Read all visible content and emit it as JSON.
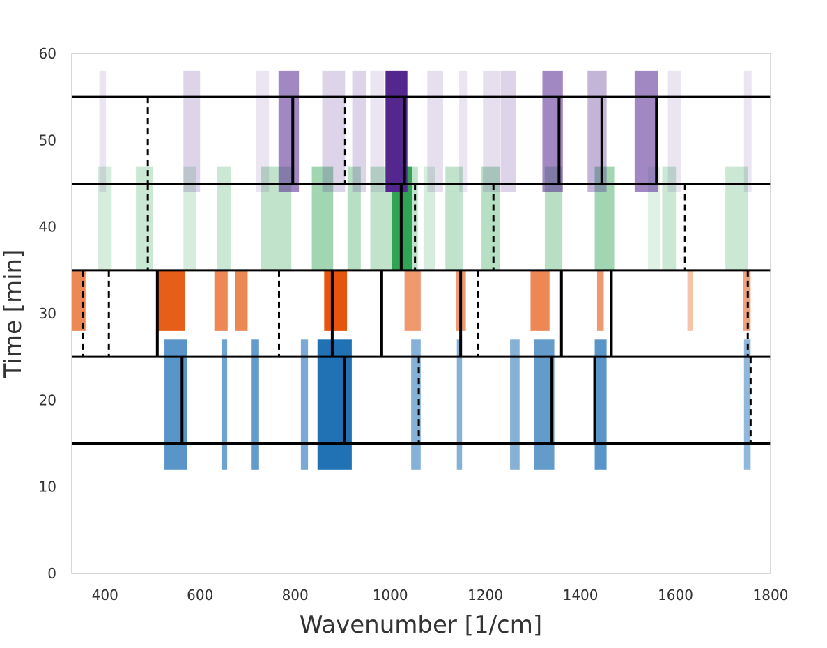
{
  "chart_data": {
    "type": "bar",
    "title": "",
    "xlabel": "Wavenumber [1/cm]",
    "ylabel": "Time [min]",
    "xlim": [
      330,
      1800
    ],
    "ylim": [
      0,
      60
    ],
    "grid": false,
    "x_ticks": [
      400,
      600,
      800,
      1000,
      1200,
      1400,
      1600,
      1800
    ],
    "y_ticks": [
      0,
      10,
      20,
      30,
      40,
      50,
      60
    ],
    "time_markers": [
      15,
      25,
      35,
      45,
      55
    ],
    "series": [
      {
        "name": "blue",
        "color": "#2171b5",
        "y_range": [
          12,
          27
        ],
        "bands": [
          {
            "x0": 525,
            "x1": 572,
            "intensity": 0.75
          },
          {
            "x0": 645,
            "x1": 657,
            "intensity": 0.65
          },
          {
            "x0": 707,
            "x1": 724,
            "intensity": 0.7
          },
          {
            "x0": 812,
            "x1": 827,
            "intensity": 0.6
          },
          {
            "x0": 847,
            "x1": 919,
            "intensity": 1.0
          },
          {
            "x0": 1044,
            "x1": 1064,
            "intensity": 0.55
          },
          {
            "x0": 1140,
            "x1": 1151,
            "intensity": 0.55
          },
          {
            "x0": 1252,
            "x1": 1272,
            "intensity": 0.55
          },
          {
            "x0": 1302,
            "x1": 1345,
            "intensity": 0.7
          },
          {
            "x0": 1430,
            "x1": 1455,
            "intensity": 0.75
          },
          {
            "x0": 1744,
            "x1": 1758,
            "intensity": 0.5
          }
        ],
        "markers": [
          {
            "x": 562,
            "style": "solid"
          },
          {
            "x": 903,
            "style": "solid"
          },
          {
            "x": 1060,
            "style": "dashed"
          },
          {
            "x": 1340,
            "style": "solid"
          },
          {
            "x": 1430,
            "style": "solid"
          },
          {
            "x": 1758,
            "style": "dashed"
          }
        ]
      },
      {
        "name": "orange",
        "color": "#e6550d",
        "y_range": [
          28,
          35
        ],
        "bands": [
          {
            "x0": 330,
            "x1": 359,
            "intensity": 0.7
          },
          {
            "x0": 512,
            "x1": 568,
            "intensity": 0.95
          },
          {
            "x0": 630,
            "x1": 658,
            "intensity": 0.7
          },
          {
            "x0": 673,
            "x1": 700,
            "intensity": 0.7
          },
          {
            "x0": 861,
            "x1": 909,
            "intensity": 1.0
          },
          {
            "x0": 1030,
            "x1": 1064,
            "intensity": 0.6
          },
          {
            "x0": 1139,
            "x1": 1159,
            "intensity": 0.6
          },
          {
            "x0": 1295,
            "x1": 1335,
            "intensity": 0.7
          },
          {
            "x0": 1435,
            "x1": 1449,
            "intensity": 0.6
          },
          {
            "x0": 1625,
            "x1": 1637,
            "intensity": 0.35
          },
          {
            "x0": 1742,
            "x1": 1758,
            "intensity": 0.55
          }
        ],
        "markers": [
          {
            "x": 353,
            "style": "dashed"
          },
          {
            "x": 408,
            "style": "dashed"
          },
          {
            "x": 510,
            "style": "solid"
          },
          {
            "x": 766,
            "style": "dashed"
          },
          {
            "x": 878,
            "style": "solid"
          },
          {
            "x": 982,
            "style": "solid"
          },
          {
            "x": 1148,
            "style": "solid"
          },
          {
            "x": 1185,
            "style": "dashed"
          },
          {
            "x": 1360,
            "style": "solid"
          },
          {
            "x": 1465,
            "style": "solid"
          },
          {
            "x": 1752,
            "style": "dashed"
          }
        ]
      },
      {
        "name": "green",
        "color": "#31a354",
        "y_range": [
          35,
          47
        ],
        "bands": [
          {
            "x0": 385,
            "x1": 414,
            "intensity": 0.2
          },
          {
            "x0": 465,
            "x1": 500,
            "intensity": 0.25
          },
          {
            "x0": 565,
            "x1": 592,
            "intensity": 0.2
          },
          {
            "x0": 635,
            "x1": 665,
            "intensity": 0.25
          },
          {
            "x0": 728,
            "x1": 792,
            "intensity": 0.3
          },
          {
            "x0": 835,
            "x1": 880,
            "intensity": 0.45
          },
          {
            "x0": 910,
            "x1": 938,
            "intensity": 0.35
          },
          {
            "x0": 958,
            "x1": 1003,
            "intensity": 0.3
          },
          {
            "x0": 1003,
            "x1": 1046,
            "intensity": 1.0
          },
          {
            "x0": 1046,
            "x1": 1058,
            "intensity": 0.3
          },
          {
            "x0": 1070,
            "x1": 1094,
            "intensity": 0.2
          },
          {
            "x0": 1116,
            "x1": 1152,
            "intensity": 0.3
          },
          {
            "x0": 1192,
            "x1": 1230,
            "intensity": 0.35
          },
          {
            "x0": 1325,
            "x1": 1362,
            "intensity": 0.35
          },
          {
            "x0": 1430,
            "x1": 1471,
            "intensity": 0.45
          },
          {
            "x0": 1542,
            "x1": 1568,
            "intensity": 0.15
          },
          {
            "x0": 1572,
            "x1": 1601,
            "intensity": 0.25
          },
          {
            "x0": 1705,
            "x1": 1752,
            "intensity": 0.25
          }
        ],
        "markers": [
          {
            "x": 490,
            "style": "dashed"
          },
          {
            "x": 1023,
            "style": "solid"
          },
          {
            "x": 1052,
            "style": "dashed"
          },
          {
            "x": 1217,
            "style": "dashed"
          },
          {
            "x": 1620,
            "style": "dashed"
          }
        ]
      },
      {
        "name": "purple",
        "color": "#54278f",
        "y_range": [
          44,
          58
        ],
        "bands": [
          {
            "x0": 388,
            "x1": 402,
            "intensity": 0.12
          },
          {
            "x0": 565,
            "x1": 600,
            "intensity": 0.2
          },
          {
            "x0": 718,
            "x1": 745,
            "intensity": 0.12
          },
          {
            "x0": 765,
            "x1": 808,
            "intensity": 0.55
          },
          {
            "x0": 857,
            "x1": 905,
            "intensity": 0.2
          },
          {
            "x0": 920,
            "x1": 950,
            "intensity": 0.2
          },
          {
            "x0": 958,
            "x1": 987,
            "intensity": 0.12
          },
          {
            "x0": 990,
            "x1": 1036,
            "intensity": 1.0
          },
          {
            "x0": 1078,
            "x1": 1111,
            "intensity": 0.15
          },
          {
            "x0": 1145,
            "x1": 1163,
            "intensity": 0.12
          },
          {
            "x0": 1195,
            "x1": 1230,
            "intensity": 0.15
          },
          {
            "x0": 1232,
            "x1": 1265,
            "intensity": 0.2
          },
          {
            "x0": 1320,
            "x1": 1363,
            "intensity": 0.55
          },
          {
            "x0": 1415,
            "x1": 1455,
            "intensity": 0.35
          },
          {
            "x0": 1514,
            "x1": 1564,
            "intensity": 0.55
          },
          {
            "x0": 1584,
            "x1": 1612,
            "intensity": 0.12
          },
          {
            "x0": 1744,
            "x1": 1760,
            "intensity": 0.12
          }
        ],
        "markers": [
          {
            "x": 490,
            "style": "dashed"
          },
          {
            "x": 795,
            "style": "solid"
          },
          {
            "x": 905,
            "style": "dashed"
          },
          {
            "x": 1030,
            "style": "solid"
          },
          {
            "x": 1355,
            "style": "solid"
          },
          {
            "x": 1445,
            "style": "solid"
          },
          {
            "x": 1560,
            "style": "solid"
          }
        ]
      }
    ]
  }
}
